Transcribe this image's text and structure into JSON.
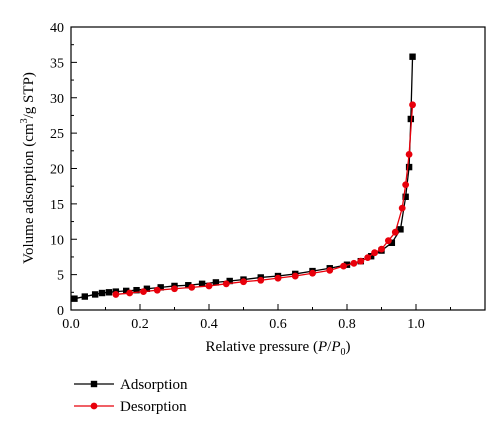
{
  "chart_data": {
    "type": "line",
    "title": "",
    "xlabel": "Relative pressure (P/P0)",
    "ylabel": "Volume adsorption (cm3/g STP)",
    "xlim": [
      0,
      1.2
    ],
    "ylim": [
      0,
      40
    ],
    "x_ticks": [
      "0.0",
      "0.2",
      "0.4",
      "0.6",
      "0.8",
      "1.0"
    ],
    "x_tick_values": [
      0,
      0.2,
      0.4,
      0.6,
      0.8,
      1.0
    ],
    "y_ticks": [
      "0",
      "5",
      "10",
      "15",
      "20",
      "25",
      "30",
      "35",
      "40"
    ],
    "y_tick_values": [
      0,
      5,
      10,
      15,
      20,
      25,
      30,
      35,
      40
    ],
    "grid": false,
    "legend_position": "bottom-left",
    "series": [
      {
        "name": "Adsorption",
        "color": "#000000",
        "marker": "square",
        "points": [
          [
            0.01,
            1.6
          ],
          [
            0.04,
            1.9
          ],
          [
            0.07,
            2.2
          ],
          [
            0.09,
            2.4
          ],
          [
            0.11,
            2.5
          ],
          [
            0.13,
            2.6
          ],
          [
            0.16,
            2.7
          ],
          [
            0.19,
            2.8
          ],
          [
            0.22,
            3.0
          ],
          [
            0.26,
            3.2
          ],
          [
            0.3,
            3.4
          ],
          [
            0.34,
            3.5
          ],
          [
            0.38,
            3.7
          ],
          [
            0.42,
            3.9
          ],
          [
            0.46,
            4.1
          ],
          [
            0.5,
            4.3
          ],
          [
            0.55,
            4.6
          ],
          [
            0.6,
            4.8
          ],
          [
            0.65,
            5.1
          ],
          [
            0.7,
            5.5
          ],
          [
            0.75,
            5.9
          ],
          [
            0.8,
            6.4
          ],
          [
            0.84,
            6.9
          ],
          [
            0.87,
            7.6
          ],
          [
            0.9,
            8.4
          ],
          [
            0.93,
            9.5
          ],
          [
            0.955,
            11.4
          ],
          [
            0.97,
            16.0
          ],
          [
            0.98,
            20.2
          ],
          [
            0.985,
            27.0
          ],
          [
            0.99,
            35.8
          ]
        ]
      },
      {
        "name": "Desorption",
        "color": "#e8000b",
        "marker": "circle",
        "points": [
          [
            0.99,
            29.0
          ],
          [
            0.98,
            22.0
          ],
          [
            0.97,
            17.7
          ],
          [
            0.96,
            14.4
          ],
          [
            0.94,
            11.0
          ],
          [
            0.92,
            9.8
          ],
          [
            0.9,
            8.6
          ],
          [
            0.88,
            8.1
          ],
          [
            0.86,
            7.4
          ],
          [
            0.84,
            6.9
          ],
          [
            0.82,
            6.6
          ],
          [
            0.79,
            6.2
          ],
          [
            0.75,
            5.6
          ],
          [
            0.7,
            5.2
          ],
          [
            0.65,
            4.8
          ],
          [
            0.6,
            4.5
          ],
          [
            0.55,
            4.2
          ],
          [
            0.5,
            4.0
          ],
          [
            0.45,
            3.7
          ],
          [
            0.4,
            3.4
          ],
          [
            0.35,
            3.2
          ],
          [
            0.3,
            3.0
          ],
          [
            0.25,
            2.8
          ],
          [
            0.21,
            2.6
          ],
          [
            0.17,
            2.4
          ],
          [
            0.13,
            2.2
          ]
        ]
      }
    ]
  }
}
